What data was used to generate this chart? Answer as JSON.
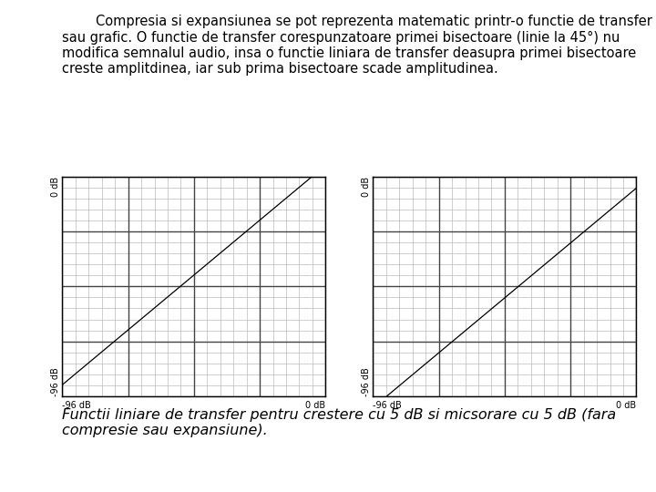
{
  "title_text": "Compresia si expansiunea se pot reprezenta matematic printr-o functie de transfer sau grafic. O functie de transfer corespunzatoare primei bisectoare (linie la 45°) nu modifica semnalul audio, insa o functie liniara de transfer deasupra primei bisectoare creste amplitdinea, iar sub prima bisectoare scade amplitudinea.",
  "caption_text": "Functii liniare de transfer pentru crestere cu 5 dB si micsorare cu 5 dB (fara\ncompresie sau expansiune).",
  "x_min": -96,
  "x_max": 0,
  "y_min": -96,
  "y_max": 0,
  "x_label_left": "-96 dB",
  "x_label_right": "0 dB",
  "y_label_bottom": "-96 dB",
  "y_label_top": "0 dB",
  "line1_slope": 1.0,
  "line1_intercept": 5,
  "line2_slope": 1.0,
  "line2_intercept": -5,
  "grid_color": "#bbbbbb",
  "major_grid_color": "#444444",
  "bg_color": "#ffffff",
  "line_color": "#000000",
  "n_major": 4,
  "n_minor_per_major": 5,
  "title_fontsize": 10.5,
  "caption_fontsize": 11.5,
  "title_indent_spaces": 8
}
